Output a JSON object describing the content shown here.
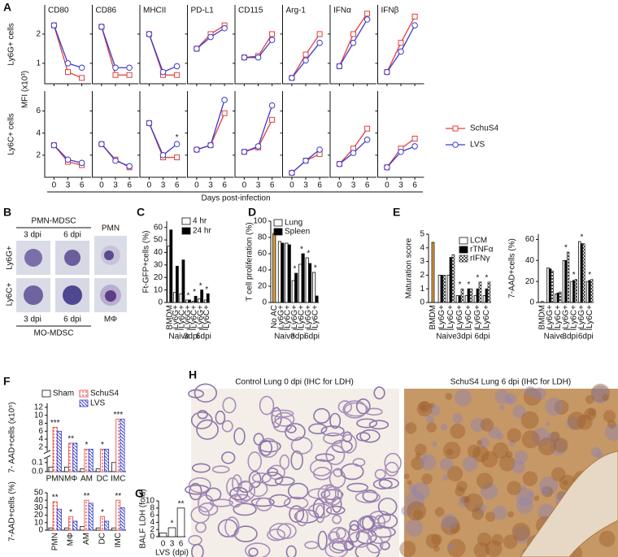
{
  "panel_letters": [
    "A",
    "B",
    "C",
    "D",
    "E",
    "F",
    "G",
    "H"
  ],
  "chart_data": [
    {
      "type": "line",
      "panels": [
        "CD80",
        "CD86",
        "MHCII",
        "PD-L1",
        "CD115",
        "Arg-1",
        "IFNα",
        "IFNβ"
      ],
      "row_labels": [
        "Ly6G+ cells",
        "Ly6C+ cells"
      ],
      "ylabel": "MFI (x10³)",
      "x": [
        0,
        3,
        6
      ],
      "xlim": [
        -2,
        8
      ],
      "xlabel": "Days post-infection",
      "ylim": [
        [
          0.3,
          3
        ],
        [
          0,
          7.8
        ]
      ],
      "yticks": [
        [
          1,
          2
        ],
        [
          2,
          4,
          6
        ]
      ],
      "series": [
        {
          "name": "SchuS4",
          "color": "#e0403a",
          "marker": "square",
          "values": [
            [
              [
                2.3,
                0.7,
                0.5
              ],
              [
                2.25,
                0.6,
                0.6
              ],
              [
                2.0,
                0.6,
                0.6
              ],
              [
                1.5,
                2.0,
                2.3
              ],
              [
                1.2,
                1.25,
                2.0
              ],
              [
                0.5,
                1.3,
                2.0
              ],
              [
                0.9,
                2.0,
                2.7
              ],
              [
                0.7,
                1.7,
                2.6
              ]
            ],
            [
              [
                2.9,
                1.4,
                1.1
              ],
              [
                3.0,
                1.6,
                0.9
              ],
              [
                4.9,
                1.8,
                1.8
              ],
              [
                2.5,
                2.9,
                5.8
              ],
              [
                2.3,
                2.7,
                5.2
              ],
              [
                0.4,
                1.5,
                2.1
              ],
              [
                1.2,
                2.6,
                4.4
              ],
              [
                0.9,
                2.6,
                3.5
              ]
            ]
          ]
        },
        {
          "name": "LVS",
          "color": "#3a3ad0",
          "marker": "circle",
          "values": [
            [
              [
                2.3,
                1.0,
                0.85
              ],
              [
                2.25,
                0.85,
                0.85
              ],
              [
                2.0,
                0.7,
                0.9
              ],
              [
                1.5,
                1.9,
                2.2
              ],
              [
                1.2,
                1.2,
                1.8
              ],
              [
                0.5,
                1.1,
                1.7
              ],
              [
                0.9,
                1.7,
                2.5
              ],
              [
                0.7,
                1.4,
                2.3
              ]
            ],
            [
              [
                2.9,
                1.6,
                1.3
              ],
              [
                3.0,
                1.5,
                1.0
              ],
              [
                4.9,
                2.0,
                3.0
              ],
              [
                2.5,
                2.9,
                7.0
              ],
              [
                2.3,
                2.8,
                6.5
              ],
              [
                0.4,
                1.5,
                2.5
              ],
              [
                1.2,
                2.2,
                3.4
              ],
              [
                0.9,
                2.3,
                2.8
              ]
            ]
          ]
        }
      ],
      "annotations": [
        "*"
      ]
    },
    {
      "type": "bar",
      "ylabel": "Ft-GFP+cells (%)",
      "categories": [
        "BMDM",
        "Ly6G+",
        "Ly6C+",
        "Ly6G+",
        "Ly6C+",
        "Ly6G+",
        "Ly6C+"
      ],
      "groups": [
        "Naive",
        "3dpi",
        "6dpi"
      ],
      "series": [
        {
          "name": "4 hr",
          "color": "#ffffff",
          "values": [
            45,
            8,
            7,
            2,
            1,
            3,
            2
          ]
        },
        {
          "name": "24 hr",
          "color": "#000000",
          "values": [
            58,
            29,
            34,
            2,
            5,
            10,
            7
          ]
        }
      ],
      "ylim": [
        0,
        65
      ],
      "yticks": [
        0,
        10,
        20,
        30,
        40,
        50,
        60
      ],
      "stars": [
        null,
        null,
        null,
        "*",
        "*",
        "*",
        "*"
      ]
    },
    {
      "type": "bar",
      "ylabel": "T cell proliferation (%)",
      "categories": [
        "No AC",
        "Ly6G+",
        "Ly6C+",
        "Ly6G+",
        "Ly6C+",
        "Ly6G+",
        "Ly6C+"
      ],
      "groups": [
        "Naive",
        "3dpi",
        "6dpi"
      ],
      "first_color": "#e8a33a",
      "series": [
        {
          "name": "Lung",
          "color": "#ffffff",
          "values": [
            85,
            75,
            73,
            27,
            47,
            55,
            37
          ]
        },
        {
          "name": "Spleen",
          "color": "#000000",
          "values": [
            null,
            73,
            71,
            36,
            60,
            48,
            8
          ]
        }
      ],
      "ylim": [
        0,
        100
      ],
      "yticks": [
        0,
        20,
        40,
        60,
        80,
        100
      ],
      "stars": [
        null,
        null,
        null,
        "*",
        "*",
        "*",
        "*"
      ]
    },
    {
      "type": "bar",
      "ylabel": "Maturation score",
      "categories": [
        "BMDM",
        "Ly6G+",
        "Ly6C+",
        "Ly6G+",
        "Ly6C+",
        "Ly6G+",
        "Ly6C+"
      ],
      "groups": [
        "Naive",
        "3dpi",
        "6dpi"
      ],
      "first_color": "#e8a33a",
      "series": [
        {
          "name": "LCM",
          "color": "#ffffff",
          "values": [
            4.4,
            2.0,
            2.0,
            0.5,
            0.5,
            0.5,
            0.5
          ]
        },
        {
          "name": "rTNFα",
          "color": "#000000",
          "values": [
            null,
            2.0,
            3.3,
            0.5,
            1.0,
            1.0,
            1.0
          ]
        },
        {
          "name": "rIFNγ",
          "color": "#444444",
          "pattern": "check",
          "values": [
            null,
            2.0,
            3.5,
            1.0,
            1.0,
            1.5,
            1.5
          ]
        }
      ],
      "ylim": [
        0,
        5
      ],
      "yticks": [
        0,
        1,
        2,
        3,
        4,
        5
      ],
      "stars": [
        null,
        null,
        null,
        "*",
        "*",
        "*",
        "*"
      ]
    },
    {
      "type": "bar",
      "ylabel": "7-AAD+cells (%)",
      "categories": [
        "BMDM",
        "Ly6G+",
        "Ly6C+",
        "Ly6G+",
        "Ly6C+",
        "Ly6G+",
        "Ly6C+"
      ],
      "groups": [
        "Naive",
        "3dpi",
        "6dpi"
      ],
      "series": [
        {
          "color": "#ffffff",
          "values": [
            1,
            33,
            8,
            40,
            20,
            58,
            20
          ]
        },
        {
          "color": "#000000",
          "values": [
            null,
            32,
            9,
            40,
            21,
            56,
            21
          ]
        },
        {
          "color": "#444444",
          "pattern": "check",
          "values": [
            null,
            30,
            10,
            48,
            22,
            56,
            22
          ]
        }
      ],
      "ylim": [
        0,
        65
      ],
      "yticks": [
        0,
        20,
        40,
        60
      ],
      "stars": [
        null,
        null,
        null,
        "*",
        "*",
        "*",
        "*"
      ]
    },
    {
      "type": "bar",
      "ylabel": "7- AAD+cells (x10⁵)",
      "categories": [
        "PMN",
        "MΦ",
        "AM",
        "DC",
        "IMC"
      ],
      "series": [
        {
          "name": "Sham",
          "color": "#ffffff",
          "values": [
            0.05,
            0.05,
            0.03,
            0.03,
            0.1
          ]
        },
        {
          "name": "SchuS4",
          "color": "#e0403a",
          "pattern": "dots",
          "values": [
            7,
            3,
            1.5,
            1.5,
            9
          ]
        },
        {
          "name": "LVS",
          "color": "#3a3ad0",
          "pattern": "hatch",
          "values": [
            6,
            3,
            1.5,
            1.5,
            9
          ]
        }
      ],
      "ylim": [
        0,
        13
      ],
      "axis_break": [
        0.15,
        1
      ],
      "yticks": [
        {
          "value": 0,
          "label": "0.0"
        },
        0.1,
        2,
        4,
        6,
        8,
        10,
        12
      ],
      "stars": [
        "***",
        "**",
        "*",
        "*",
        "***"
      ]
    },
    {
      "type": "bar",
      "ylabel": "7-AAD+cells (%)",
      "categories": [
        "PMN",
        "MΦ",
        "AM",
        "DC",
        "IMC"
      ],
      "series": [
        {
          "color": "#ffffff",
          "values": [
            3,
            3,
            5,
            3,
            3
          ]
        },
        {
          "color": "#e0403a",
          "pattern": "dots",
          "values": [
            38,
            18,
            40,
            18,
            40
          ]
        },
        {
          "color": "#3a3ad0",
          "pattern": "hatch",
          "values": [
            28,
            12,
            36,
            12,
            30
          ]
        }
      ],
      "ylim": [
        0,
        50
      ],
      "yticks": [
        0,
        10,
        20,
        30,
        40,
        50
      ],
      "stars": [
        "**",
        "*",
        "**",
        "*",
        "**"
      ]
    },
    {
      "type": "bar",
      "ylabel": "BALF LDH (fold)",
      "xlabel": "LVS (dpi)",
      "categories": [
        "0",
        "3",
        "6"
      ],
      "series": [
        {
          "color": "#ffffff",
          "values": [
            1,
            2.5,
            8
          ]
        }
      ],
      "ylim": [
        0,
        10
      ],
      "yticks": [
        0,
        2,
        4,
        6,
        8,
        10
      ],
      "stars": [
        null,
        "*",
        "**"
      ]
    }
  ],
  "panel_b": {
    "top_label": "PMN-MDSC",
    "bottom_label": "MO-MDSC",
    "top_columns": [
      "3 dpi",
      "6 dpi",
      "PMN"
    ],
    "bottom_columns": [
      "3 dpi",
      "6 dpi",
      "MΦ"
    ],
    "rows": [
      "Ly6G+",
      "Ly6C+"
    ]
  },
  "panel_h": {
    "left_title": "Control Lung 0 dpi (IHC for LDH)",
    "right_title": "SchuS4 Lung 6 dpi (IHC for LDH)"
  }
}
